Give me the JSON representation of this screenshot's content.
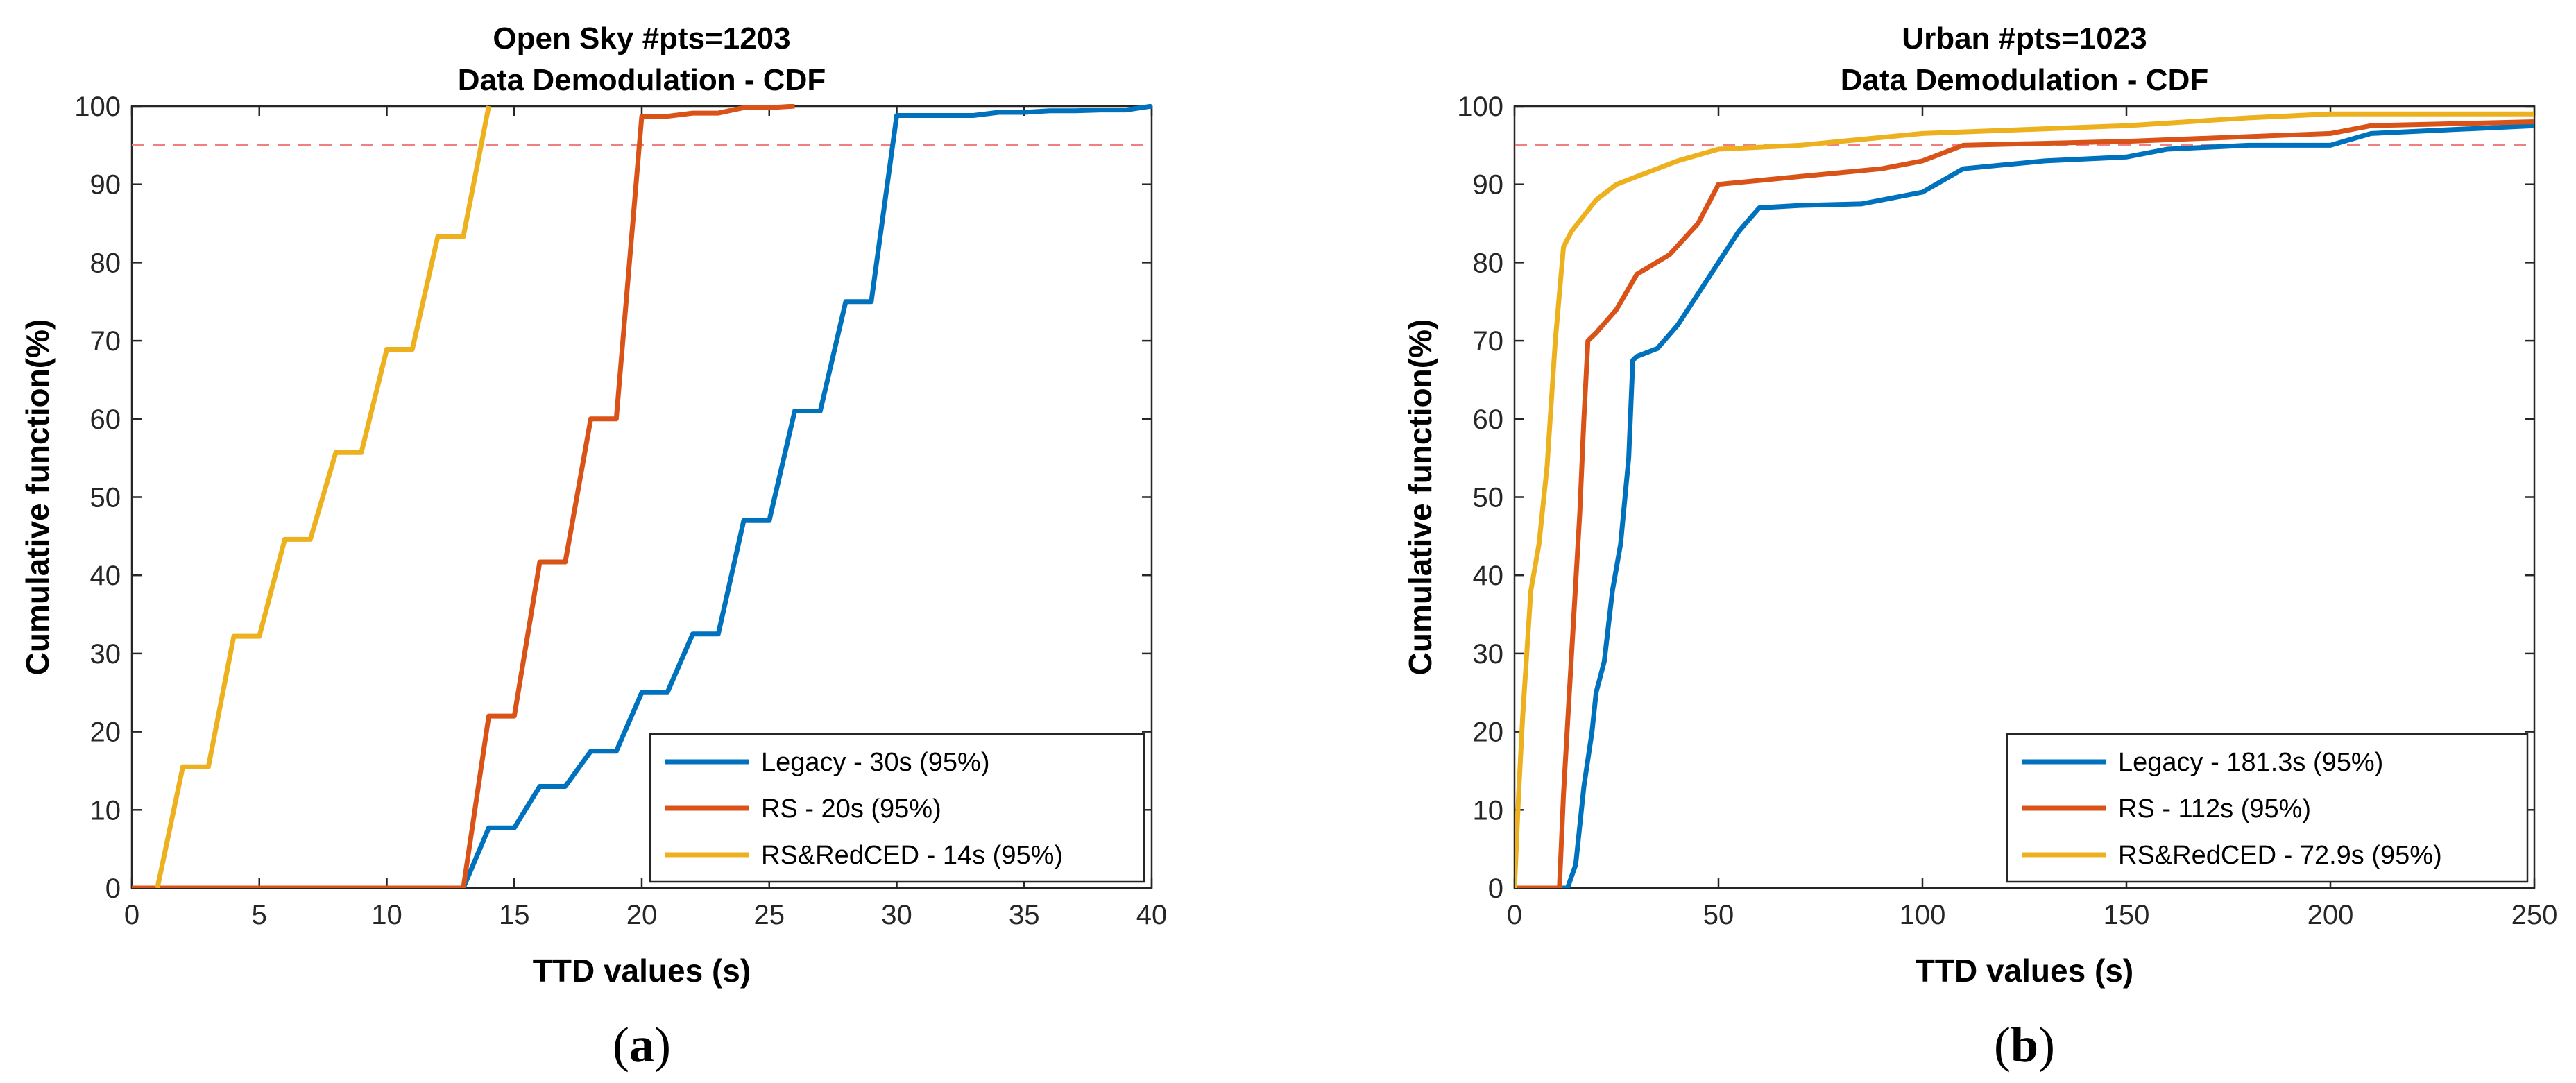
{
  "colors": {
    "legacy": "#0072BD",
    "rs": "#D95319",
    "rsredced": "#EDB120",
    "threshold": "#F08080",
    "axis": "#262626"
  },
  "chart_data": [
    {
      "type": "line",
      "panel": "a",
      "caption_letter": "a",
      "title": "Open Sky #pts=1203",
      "subtitle": "Data Demodulation - CDF",
      "xlabel": "TTD values (s)",
      "ylabel": "Cumulative function(%)",
      "xlim": [
        0,
        40
      ],
      "ylim": [
        0,
        100
      ],
      "xticks": [
        0,
        5,
        10,
        15,
        20,
        25,
        30,
        35,
        40
      ],
      "yticks": [
        0,
        10,
        20,
        30,
        40,
        50,
        60,
        70,
        80,
        90,
        100
      ],
      "threshold": 95,
      "legend_position": "bottom-right",
      "series": [
        {
          "name": "Legacy - 30s (95%)",
          "color_key": "legacy",
          "x": [
            0,
            13,
            14,
            15,
            16,
            17,
            18,
            19,
            20,
            21,
            22,
            23,
            24,
            25,
            26,
            27,
            28,
            29,
            30,
            31,
            32,
            33,
            34,
            35,
            36,
            37,
            38,
            39,
            40
          ],
          "y": [
            0,
            0,
            7.7,
            7.7,
            13,
            13,
            17.5,
            17.5,
            25,
            25,
            32.5,
            32.5,
            47,
            47,
            61,
            61,
            75,
            75,
            98.8,
            98.8,
            98.8,
            98.8,
            99.2,
            99.2,
            99.4,
            99.4,
            99.5,
            99.5,
            100
          ]
        },
        {
          "name": "RS - 20s (95%)",
          "color_key": "rs",
          "x": [
            0,
            13,
            14,
            15,
            16,
            17,
            18,
            19,
            20,
            21,
            22,
            23,
            24,
            25,
            26
          ],
          "y": [
            0,
            0,
            22,
            22,
            41.7,
            41.7,
            60,
            60,
            98.7,
            98.7,
            99.1,
            99.1,
            99.8,
            99.8,
            100
          ]
        },
        {
          "name": "RS&RedCED - 14s (95%)",
          "color_key": "rsredced",
          "x": [
            1,
            2,
            3,
            4,
            5,
            6,
            7,
            8,
            9,
            10,
            11,
            12,
            13,
            14
          ],
          "y": [
            0,
            15.5,
            15.5,
            32.2,
            32.2,
            44.6,
            44.6,
            55.7,
            55.7,
            68.9,
            68.9,
            83.3,
            83.3,
            100
          ]
        }
      ]
    },
    {
      "type": "line",
      "panel": "b",
      "caption_letter": "b",
      "title": "Urban #pts=1023",
      "subtitle": "Data Demodulation - CDF",
      "xlabel": "TTD values (s)",
      "ylabel": "Cumulative function(%)",
      "xlim": [
        0,
        250
      ],
      "ylim": [
        0,
        100
      ],
      "xticks": [
        0,
        50,
        100,
        150,
        200,
        250
      ],
      "yticks": [
        0,
        10,
        20,
        30,
        40,
        50,
        60,
        70,
        80,
        90,
        100
      ],
      "threshold": 95,
      "legend_position": "bottom-right",
      "series": [
        {
          "name": "Legacy - 181.3s (95%)",
          "color_key": "legacy",
          "x": [
            0,
            13,
            15,
            17,
            19,
            20,
            22,
            24,
            26,
            28,
            29,
            30,
            35,
            40,
            45,
            50,
            55,
            60,
            70,
            85,
            100,
            110,
            130,
            150,
            160,
            180,
            200,
            210,
            230,
            250
          ],
          "y": [
            0,
            0,
            3,
            13,
            20,
            25,
            29,
            38,
            44,
            55,
            67.5,
            68,
            69,
            72,
            76,
            80,
            84,
            87,
            87.3,
            87.5,
            89,
            92,
            93,
            93.5,
            94.5,
            95,
            95,
            96.5,
            97,
            97.5
          ]
        },
        {
          "name": "RS - 112s (95%)",
          "color_key": "rs",
          "x": [
            0,
            11,
            12,
            14,
            16,
            17,
            18,
            20,
            25,
            30,
            38,
            45,
            50,
            60,
            70,
            90,
            100,
            110,
            150,
            200,
            210,
            250
          ],
          "y": [
            0,
            0,
            12,
            30,
            48,
            60,
            70,
            71,
            74,
            78.5,
            81,
            85,
            90,
            90.5,
            91,
            92,
            93,
            95,
            95.5,
            96.5,
            97.5,
            98
          ]
        },
        {
          "name": "RS&RedCED - 72.9s (95%)",
          "color_key": "rsredced",
          "x": [
            0,
            1,
            2,
            4,
            6,
            8,
            10,
            12,
            14,
            17,
            20,
            25,
            30,
            40,
            50,
            70,
            100,
            150,
            180,
            200,
            250
          ],
          "y": [
            0,
            12,
            22,
            38,
            44,
            54,
            70,
            82,
            84,
            86,
            88,
            90,
            91,
            93,
            94.5,
            95,
            96.5,
            97.5,
            98.5,
            99,
            99
          ]
        }
      ]
    }
  ]
}
